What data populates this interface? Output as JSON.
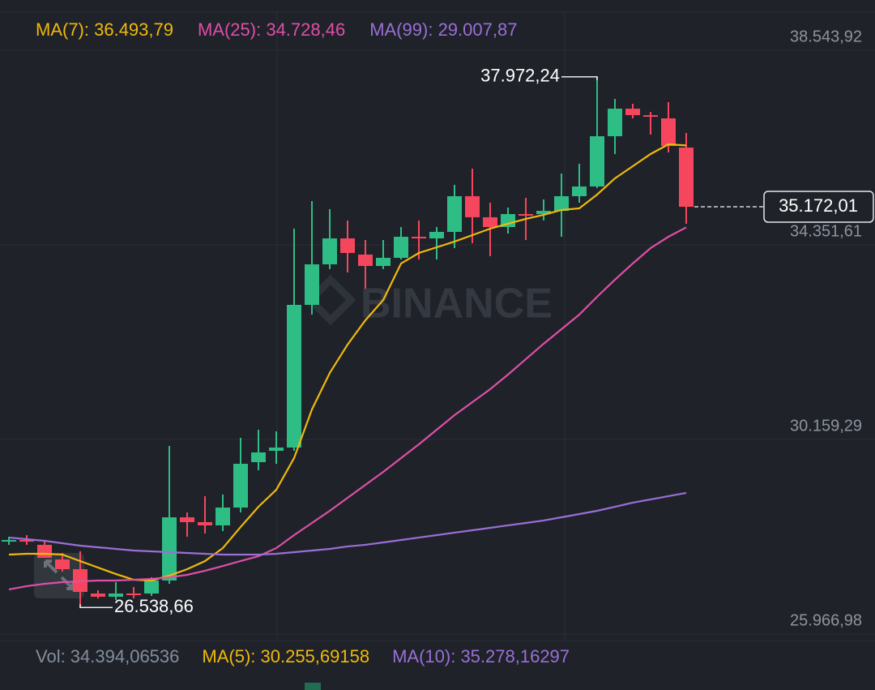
{
  "chart_data": {
    "type": "candlestick",
    "watermark": "BINANCE",
    "up_color": "#2ebd85",
    "down_color": "#f6465d",
    "open": [
      27958,
      27993,
      27889,
      27574,
      27364,
      26840,
      26771,
      26840,
      26840,
      27120,
      28482,
      28378,
      28308,
      28692,
      29670,
      29915,
      29985,
      33059,
      33932,
      34491,
      34142,
      33897,
      34072,
      34526,
      34491,
      34631,
      35400,
      34946,
      34736,
      35015,
      35015,
      35085,
      35400,
      35609,
      36692,
      37286,
      37146,
      37077,
      36448
    ],
    "high": [
      28063,
      28098,
      27958,
      27714,
      27749,
      26910,
      27085,
      26980,
      27190,
      30020,
      28587,
      28937,
      28972,
      30194,
      30369,
      30334,
      34701,
      35295,
      35120,
      34876,
      34456,
      34456,
      34736,
      34876,
      34736,
      35644,
      35994,
      35260,
      35155,
      35365,
      35330,
      35889,
      36098,
      37972.24,
      37496,
      37391,
      37216,
      37426,
      36762
    ],
    "low": [
      27889,
      27889,
      27609,
      27312,
      26538.66,
      26736,
      26701,
      26736,
      26788,
      27050,
      28063,
      28133,
      28186,
      28587,
      29496,
      29635,
      29915,
      32849,
      33828,
      33758,
      33408,
      33828,
      34037,
      34037,
      34037,
      34282,
      34387,
      34107,
      34596,
      34456,
      34876,
      34526,
      35260,
      35574,
      36308,
      37077,
      36727,
      36343,
      34806
    ],
    "close": [
      27993,
      27958,
      27609,
      27364,
      26875,
      26771,
      26840,
      26806,
      27120,
      28482,
      28378,
      28308,
      28692,
      29635,
      29880,
      29985,
      33059,
      33932,
      34491,
      34177,
      33897,
      34072,
      34526,
      34491,
      34631,
      35400,
      34946,
      34736,
      35015,
      34980,
      35085,
      35400,
      35609,
      36692,
      37286,
      37146,
      37112,
      36483,
      35172.01
    ],
    "series": [
      {
        "name": "MA(7): 36.493,79",
        "color": "#f0b90b",
        "values": [
          27679,
          27696,
          27696,
          27679,
          27539,
          27399,
          27260,
          27137,
          27120,
          27225,
          27364,
          27539,
          27819,
          28273,
          28709,
          29076,
          29758,
          30806,
          31592,
          32203,
          32727,
          33164,
          33950,
          34177,
          34299,
          34422,
          34561,
          34701,
          34806,
          34911,
          34998,
          35103,
          35138,
          35435,
          35784,
          36046,
          36308,
          36518,
          36493.79
        ]
      },
      {
        "name": "MA(25): 34.728,46",
        "color": "#df4fa8",
        "values": [
          26928,
          26998,
          27050,
          27085,
          27102,
          27120,
          27120,
          27137,
          27155,
          27190,
          27242,
          27330,
          27434,
          27539,
          27644,
          27819,
          28098,
          28360,
          28622,
          28902,
          29181,
          29461,
          29758,
          30055,
          30369,
          30683,
          30963,
          31242,
          31557,
          31889,
          32221,
          32535,
          32849,
          33234,
          33601,
          33950,
          34282,
          34526,
          34728.46
        ]
      },
      {
        "name": "MA(99): 29.007,87",
        "color": "#9a6fd6",
        "values": [
          28046,
          28011,
          27976,
          27923,
          27871,
          27836,
          27801,
          27766,
          27749,
          27731,
          27714,
          27696,
          27679,
          27679,
          27679,
          27696,
          27731,
          27766,
          27801,
          27854,
          27889,
          27941,
          27993,
          28046,
          28098,
          28151,
          28203,
          28255,
          28308,
          28360,
          28413,
          28482,
          28552,
          28622,
          28709,
          28797,
          28867,
          28937,
          29007.87
        ]
      }
    ],
    "annotations": {
      "high": {
        "value": 37972.24,
        "label": "37.972,24"
      },
      "low": {
        "value": 26538.66,
        "label": "26.538,66"
      },
      "last_price": {
        "value": 35172.01,
        "label": "35.172,01"
      }
    },
    "ylim": [
      25827,
      39627
    ],
    "yticks": [
      {
        "value": 25966.98,
        "label": "25.966,98"
      },
      {
        "value": 30159.29,
        "label": "30.159,29"
      },
      {
        "value": 34351.61,
        "label": "34.351,61"
      },
      {
        "value": 38543.92,
        "label": "38.543,92"
      }
    ],
    "grid": true,
    "volume_legend": [
      {
        "text": "Vol: 34.394,06536",
        "color": "#848e9c"
      },
      {
        "text": "MA(5): 30.255,69158",
        "color": "#f0b90b"
      },
      {
        "text": "MA(10): 35.278,16297",
        "color": "#9a6fd6"
      }
    ]
  }
}
